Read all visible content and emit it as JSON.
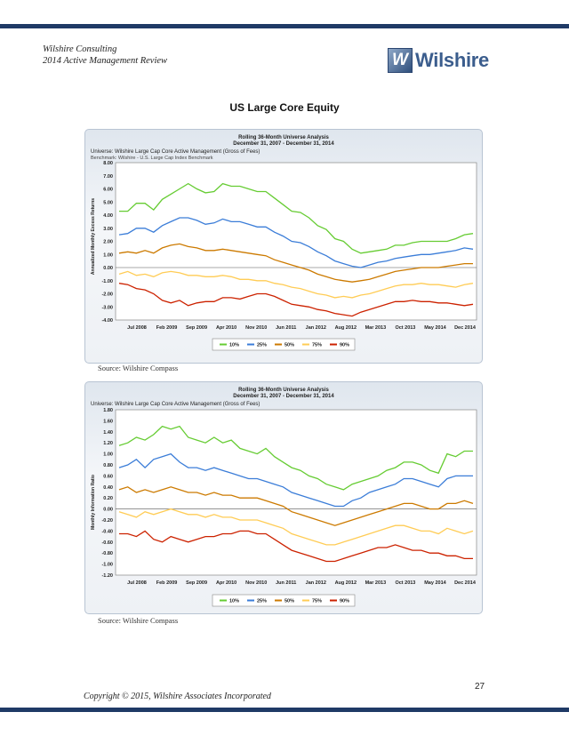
{
  "header": {
    "line1": "Wilshire Consulting",
    "line2": "2014 Active Management Review"
  },
  "logo": {
    "mark": "W",
    "text": "Wilshire"
  },
  "section_title": "US Large Core Equity",
  "colors": {
    "bars": "#1f3a66",
    "p10": "#66cc33",
    "p25": "#3b7dd8",
    "p50": "#cc7a00",
    "p75": "#ffcc55",
    "p90": "#cc2200"
  },
  "chart1": {
    "title": "Rolling 36-Month Universe Analysis",
    "subtitle": "December 31, 2007 - December 31, 2014",
    "universe": "Universe: Wilshire Large Cap Core Active Management (Gross of Fees)",
    "benchmark": "Benchmark: Wilshire - U.S. Large Cap Index Benchmark",
    "ylabel": "Annualized Monthly Excess Returns",
    "source": "Source: Wilshire Compass"
  },
  "chart2": {
    "title": "Rolling 36-Month Universe Analysis",
    "subtitle": "December 31, 2007 - December 31, 2014",
    "universe": "Universe: Wilshire Large Cap Core Active Management (Gross of Fees)",
    "ylabel": "Monthly Information Ratio",
    "source": "Source: Wilshire Compass"
  },
  "footer": {
    "page_number": "27",
    "copyright": "Copyright © 2015, Wilshire Associates Incorporated"
  },
  "chart_data": [
    {
      "type": "line",
      "title": "Rolling 36-Month Universe Analysis",
      "subtitle": "December 31, 2007 - December 31, 2014",
      "ylabel": "Annualized Monthly Excess Returns",
      "ylim": [
        -4.0,
        8.0
      ],
      "yticks": [
        "8.00",
        "7.00",
        "6.00",
        "5.00",
        "4.00",
        "3.00",
        "2.00",
        "1.00",
        "0.00",
        "-1.00",
        "-2.00",
        "-3.00",
        "-4.00"
      ],
      "xticks": [
        "Jul 2008",
        "Feb 2009",
        "Sep 2009",
        "Apr 2010",
        "Nov 2010",
        "Jun 2011",
        "Jan 2012",
        "Aug 2012",
        "Mar 2013",
        "Oct 2013",
        "May 2014",
        "Dec 2014"
      ],
      "grid": false,
      "legend": "bottom",
      "series": [
        {
          "name": "10%",
          "color": "#66cc33",
          "values": [
            4.3,
            4.3,
            4.9,
            4.9,
            4.4,
            5.2,
            5.6,
            6.0,
            6.4,
            6.0,
            5.7,
            5.8,
            6.4,
            6.2,
            6.2,
            6.0,
            5.8,
            5.8,
            5.3,
            4.8,
            4.3,
            4.2,
            3.8,
            3.2,
            2.9,
            2.2,
            2.0,
            1.4,
            1.1,
            1.2,
            1.3,
            1.4,
            1.7,
            1.7,
            1.9,
            2.0,
            2.0,
            2.0,
            2.0,
            2.2,
            2.5,
            2.6
          ]
        },
        {
          "name": "25%",
          "color": "#3b7dd8",
          "values": [
            2.5,
            2.6,
            3.0,
            3.0,
            2.7,
            3.2,
            3.5,
            3.8,
            3.8,
            3.6,
            3.3,
            3.4,
            3.7,
            3.5,
            3.5,
            3.3,
            3.1,
            3.1,
            2.7,
            2.4,
            2.0,
            1.9,
            1.6,
            1.2,
            0.9,
            0.5,
            0.3,
            0.1,
            0.0,
            0.2,
            0.4,
            0.5,
            0.7,
            0.8,
            0.9,
            1.0,
            1.0,
            1.1,
            1.2,
            1.3,
            1.5,
            1.4
          ]
        },
        {
          "name": "50%",
          "color": "#cc7a00",
          "values": [
            1.1,
            1.2,
            1.1,
            1.3,
            1.1,
            1.5,
            1.7,
            1.8,
            1.6,
            1.5,
            1.3,
            1.3,
            1.4,
            1.3,
            1.2,
            1.1,
            1.0,
            0.9,
            0.6,
            0.4,
            0.2,
            0.0,
            -0.2,
            -0.5,
            -0.7,
            -0.9,
            -1.0,
            -1.1,
            -1.0,
            -0.9,
            -0.7,
            -0.5,
            -0.3,
            -0.2,
            -0.1,
            0.0,
            0.0,
            0.0,
            0.1,
            0.2,
            0.3,
            0.3
          ]
        },
        {
          "name": "75%",
          "color": "#ffcc55",
          "values": [
            -0.5,
            -0.3,
            -0.6,
            -0.5,
            -0.7,
            -0.4,
            -0.3,
            -0.4,
            -0.6,
            -0.6,
            -0.7,
            -0.7,
            -0.6,
            -0.7,
            -0.9,
            -0.9,
            -1.0,
            -1.0,
            -1.2,
            -1.3,
            -1.5,
            -1.6,
            -1.8,
            -2.0,
            -2.1,
            -2.3,
            -2.2,
            -2.3,
            -2.1,
            -2.0,
            -1.8,
            -1.6,
            -1.4,
            -1.3,
            -1.3,
            -1.2,
            -1.3,
            -1.3,
            -1.4,
            -1.5,
            -1.3,
            -1.2
          ]
        },
        {
          "name": "90%",
          "color": "#cc2200",
          "values": [
            -1.2,
            -1.3,
            -1.6,
            -1.7,
            -2.0,
            -2.5,
            -2.7,
            -2.5,
            -2.9,
            -2.7,
            -2.6,
            -2.6,
            -2.3,
            -2.3,
            -2.4,
            -2.2,
            -2.0,
            -2.0,
            -2.2,
            -2.5,
            -2.8,
            -2.9,
            -3.0,
            -3.2,
            -3.3,
            -3.5,
            -3.6,
            -3.7,
            -3.4,
            -3.2,
            -3.0,
            -2.8,
            -2.6,
            -2.6,
            -2.5,
            -2.6,
            -2.6,
            -2.7,
            -2.7,
            -2.8,
            -2.9,
            -2.8
          ]
        }
      ]
    },
    {
      "type": "line",
      "title": "Rolling 36-Month Universe Analysis",
      "subtitle": "December 31, 2007 - December 31, 2014",
      "ylabel": "Monthly Information Ratio",
      "ylim": [
        -1.2,
        1.8
      ],
      "yticks": [
        "1.80",
        "1.60",
        "1.40",
        "1.20",
        "1.00",
        "0.80",
        "0.60",
        "0.40",
        "0.20",
        "0.00",
        "-0.20",
        "-0.40",
        "-0.60",
        "-0.80",
        "-1.00",
        "-1.20"
      ],
      "xticks": [
        "Jul 2008",
        "Feb 2009",
        "Sep 2009",
        "Apr 2010",
        "Nov 2010",
        "Jun 2011",
        "Jan 2012",
        "Aug 2012",
        "Mar 2013",
        "Oct 2013",
        "May 2014",
        "Dec 2014"
      ],
      "grid": false,
      "legend": "bottom",
      "series": [
        {
          "name": "10%",
          "color": "#66cc33",
          "values": [
            1.15,
            1.2,
            1.3,
            1.25,
            1.35,
            1.5,
            1.45,
            1.5,
            1.3,
            1.25,
            1.2,
            1.3,
            1.2,
            1.25,
            1.1,
            1.05,
            1.0,
            1.1,
            0.95,
            0.85,
            0.75,
            0.7,
            0.6,
            0.55,
            0.45,
            0.4,
            0.35,
            0.45,
            0.5,
            0.55,
            0.6,
            0.7,
            0.75,
            0.85,
            0.85,
            0.8,
            0.7,
            0.65,
            1.0,
            0.95,
            1.05,
            1.05
          ]
        },
        {
          "name": "25%",
          "color": "#3b7dd8",
          "values": [
            0.75,
            0.8,
            0.9,
            0.75,
            0.9,
            0.95,
            1.0,
            0.85,
            0.75,
            0.75,
            0.7,
            0.75,
            0.7,
            0.65,
            0.6,
            0.55,
            0.55,
            0.5,
            0.45,
            0.4,
            0.3,
            0.25,
            0.2,
            0.15,
            0.1,
            0.05,
            0.05,
            0.15,
            0.2,
            0.3,
            0.35,
            0.4,
            0.45,
            0.55,
            0.55,
            0.5,
            0.45,
            0.4,
            0.55,
            0.6,
            0.6,
            0.6
          ]
        },
        {
          "name": "50%",
          "color": "#cc7a00",
          "values": [
            0.35,
            0.4,
            0.3,
            0.35,
            0.3,
            0.35,
            0.4,
            0.35,
            0.3,
            0.3,
            0.25,
            0.3,
            0.25,
            0.25,
            0.2,
            0.2,
            0.2,
            0.15,
            0.1,
            0.05,
            -0.05,
            -0.1,
            -0.15,
            -0.2,
            -0.25,
            -0.3,
            -0.25,
            -0.2,
            -0.15,
            -0.1,
            -0.05,
            0.0,
            0.05,
            0.1,
            0.1,
            0.05,
            0.0,
            0.0,
            0.1,
            0.1,
            0.15,
            0.1
          ]
        },
        {
          "name": "75%",
          "color": "#ffcc55",
          "values": [
            -0.05,
            -0.1,
            -0.15,
            -0.05,
            -0.1,
            -0.05,
            0.0,
            -0.05,
            -0.1,
            -0.1,
            -0.15,
            -0.1,
            -0.15,
            -0.15,
            -0.2,
            -0.2,
            -0.2,
            -0.25,
            -0.3,
            -0.35,
            -0.45,
            -0.5,
            -0.55,
            -0.6,
            -0.65,
            -0.65,
            -0.6,
            -0.55,
            -0.5,
            -0.45,
            -0.4,
            -0.35,
            -0.3,
            -0.3,
            -0.35,
            -0.4,
            -0.4,
            -0.45,
            -0.35,
            -0.4,
            -0.45,
            -0.4
          ]
        },
        {
          "name": "90%",
          "color": "#cc2200",
          "values": [
            -0.45,
            -0.45,
            -0.5,
            -0.4,
            -0.55,
            -0.6,
            -0.5,
            -0.55,
            -0.6,
            -0.55,
            -0.5,
            -0.5,
            -0.45,
            -0.45,
            -0.4,
            -0.4,
            -0.45,
            -0.45,
            -0.55,
            -0.65,
            -0.75,
            -0.8,
            -0.85,
            -0.9,
            -0.95,
            -0.95,
            -0.9,
            -0.85,
            -0.8,
            -0.75,
            -0.7,
            -0.7,
            -0.65,
            -0.7,
            -0.75,
            -0.75,
            -0.8,
            -0.8,
            -0.85,
            -0.85,
            -0.9,
            -0.9
          ]
        }
      ]
    }
  ]
}
